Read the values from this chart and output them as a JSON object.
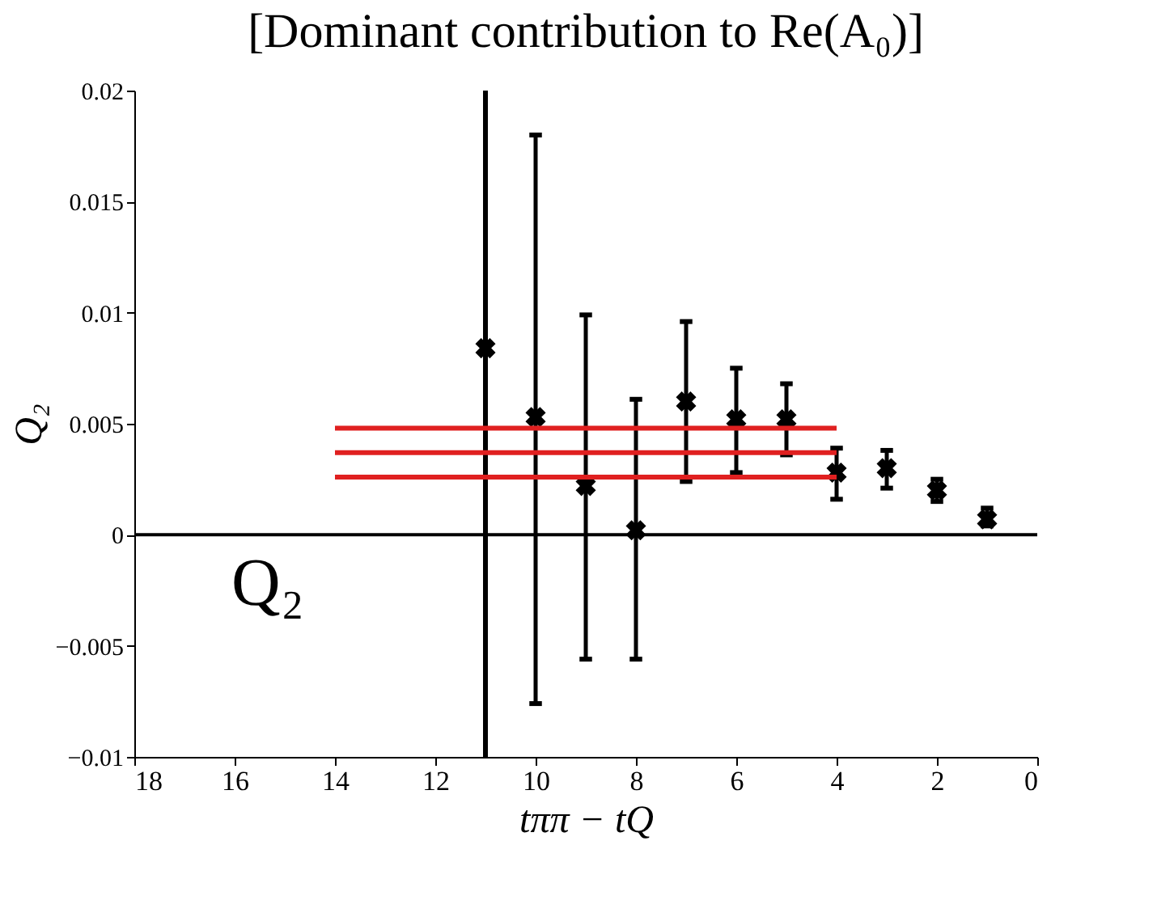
{
  "chart_data": {
    "type": "scatter",
    "title": "[Dominant contribution to Re(A₀)]",
    "xlabel": "tππ − tQ",
    "ylabel": "Q₂",
    "annotations": [
      "Q₂"
    ],
    "xlim": [
      18,
      0
    ],
    "xticks": [
      18,
      16,
      14,
      12,
      10,
      8,
      6,
      4,
      2,
      0
    ],
    "ylim": [
      -0.01,
      0.02
    ],
    "yticks": [
      {
        "value": 0.02,
        "label": "0.02"
      },
      {
        "value": 0.015,
        "label": "0.015"
      },
      {
        "value": 0.01,
        "label": "0.01"
      },
      {
        "value": 0.005,
        "label": "0.005"
      },
      {
        "value": 0,
        "label": "0"
      },
      {
        "value": -0.005,
        "label": "−0.005"
      },
      {
        "value": -0.01,
        "label": "−0.01"
      }
    ],
    "grid": false,
    "marker": "cross",
    "ref_lines": [
      {
        "axis": "y",
        "value": 0,
        "color": "#000000"
      },
      {
        "axis": "x",
        "value": 11,
        "color": "#000000"
      }
    ],
    "series": [
      {
        "color": "#000000",
        "x": [
          11,
          10,
          9,
          8,
          7,
          6,
          5,
          4,
          3,
          2,
          1
        ],
        "values": [
          0.0084,
          0.0053,
          0.0022,
          0.0002,
          0.006,
          0.0052,
          0.0052,
          0.0028,
          0.003,
          0.002,
          0.0007
        ],
        "errors": [
          null,
          [
            -0.0076,
            0.018
          ],
          [
            -0.0056,
            0.0099
          ],
          [
            -0.0056,
            0.0061
          ],
          [
            0.0024,
            0.0096
          ],
          [
            0.0028,
            0.0075
          ],
          [
            0.0036,
            0.0068
          ],
          [
            0.0016,
            0.0039
          ],
          [
            0.0021,
            0.0038
          ],
          [
            0.0015,
            0.0025
          ],
          [
            0.0004,
            0.0012
          ]
        ]
      },
      {
        "type": "line",
        "color": "#e02020",
        "marker": "none",
        "line_style": "solid",
        "x": [
          14,
          4
        ],
        "values": [
          0.0048,
          0.0048
        ]
      },
      {
        "type": "line",
        "color": "#e02020",
        "marker": "none",
        "line_style": "solid",
        "x": [
          14,
          4
        ],
        "values": [
          0.0037,
          0.0037
        ]
      },
      {
        "type": "line",
        "color": "#e02020",
        "marker": "none",
        "line_style": "solid",
        "x": [
          14,
          4
        ],
        "values": [
          0.0026,
          0.0026
        ]
      }
    ]
  }
}
